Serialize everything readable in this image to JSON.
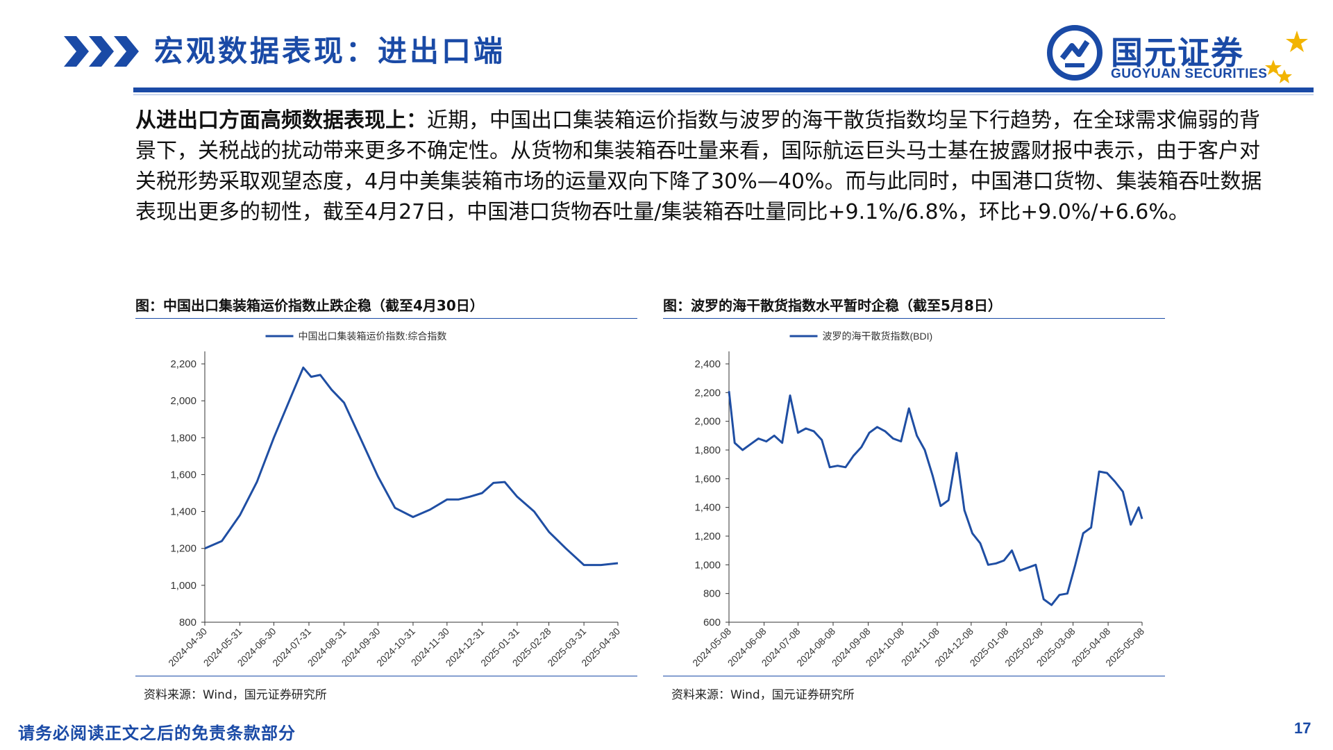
{
  "header": {
    "title": "宏观数据表现：进出口端",
    "logo_cn": "国元证券",
    "logo_en": "GUOYUAN SECURITIES",
    "icons": [
      "chevron-arrows-icon",
      "guoyuan-logo-icon",
      "stars-icon"
    ]
  },
  "colors": {
    "brand_blue": "#1a4aa6",
    "line_blue": "#1f4ea3",
    "gold": "#f2b400"
  },
  "body": {
    "lead": "从进出口方面高频数据表现上：",
    "text": "近期，中国出口集装箱运价指数与波罗的海干散货指数均呈下行趋势，在全球需求偏弱的背景下，关税战的扰动带来更多不确定性。从货物和集装箱吞吐量来看，国际航运巨头马士基在披露财报中表示，由于客户对关税形势采取观望态度，4月中美集装箱市场的运量双向下降了30%—40%。而与此同时，中国港口货物、集装箱吞吐数据表现出更多的韧性，截至4月27日，中国港口货物吞吐量/集装箱吞吐量同比+9.1%/6.8%，环比+9.0%/+6.6%。"
  },
  "panels": [
    {
      "title": "图：中国出口集装箱运价指数止跌企稳（截至4月30日）",
      "source": "资料来源：Wind，国元证券研究所"
    },
    {
      "title": "图：波罗的海干散货指数水平暂时企稳（截至5月8日）",
      "source": "资料来源：Wind，国元证券研究所"
    }
  ],
  "chart_data": [
    {
      "type": "line",
      "series": [
        {
          "name": "中国出口集装箱运价指数:综合指数",
          "x": [
            "2024-04-30",
            "2024-05-15",
            "2024-05-31",
            "2024-06-15",
            "2024-06-30",
            "2024-07-15",
            "2024-07-26",
            "2024-08-02",
            "2024-08-10",
            "2024-08-20",
            "2024-08-31",
            "2024-09-15",
            "2024-09-30",
            "2024-10-15",
            "2024-10-31",
            "2024-11-15",
            "2024-11-30",
            "2024-12-10",
            "2024-12-20",
            "2024-12-31",
            "2025-01-10",
            "2025-01-20",
            "2025-01-31",
            "2025-02-15",
            "2025-02-28",
            "2025-03-15",
            "2025-03-31",
            "2025-04-15",
            "2025-04-30"
          ],
          "values": [
            1200,
            1240,
            1380,
            1560,
            1800,
            2020,
            2180,
            2130,
            2140,
            2060,
            1990,
            1790,
            1590,
            1420,
            1370,
            1410,
            1465,
            1465,
            1480,
            1500,
            1555,
            1560,
            1480,
            1400,
            1290,
            1200,
            1110,
            1110,
            1120
          ]
        }
      ],
      "x_ticks": [
        "2024-04-30",
        "2024-05-31",
        "2024-06-30",
        "2024-07-31",
        "2024-08-31",
        "2024-09-30",
        "2024-10-31",
        "2024-11-30",
        "2024-12-31",
        "2025-01-31",
        "2025-02-28",
        "2025-03-31",
        "2025-04-30"
      ],
      "y_ticks": [
        "800",
        "1,000",
        "1,200",
        "1,400",
        "1,600",
        "1,800",
        "2,000",
        "2,200"
      ],
      "ylim": [
        800,
        2200
      ],
      "xlim": [
        "2024-04-30",
        "2025-04-30"
      ],
      "legend": "top-center",
      "grid": false
    },
    {
      "type": "line",
      "series": [
        {
          "name": "波罗的海干散货指数(BDI)",
          "x": [
            "2024-05-08",
            "2024-05-13",
            "2024-05-20",
            "2024-05-27",
            "2024-06-03",
            "2024-06-10",
            "2024-06-17",
            "2024-06-24",
            "2024-07-01",
            "2024-07-08",
            "2024-07-15",
            "2024-07-22",
            "2024-07-29",
            "2024-08-05",
            "2024-08-12",
            "2024-08-19",
            "2024-08-26",
            "2024-09-02",
            "2024-09-09",
            "2024-09-16",
            "2024-09-23",
            "2024-09-30",
            "2024-10-07",
            "2024-10-14",
            "2024-10-21",
            "2024-10-28",
            "2024-11-04",
            "2024-11-11",
            "2024-11-18",
            "2024-11-25",
            "2024-12-02",
            "2024-12-09",
            "2024-12-16",
            "2024-12-23",
            "2024-12-30",
            "2025-01-06",
            "2025-01-13",
            "2025-01-20",
            "2025-01-27",
            "2025-02-03",
            "2025-02-10",
            "2025-02-17",
            "2025-02-24",
            "2025-03-03",
            "2025-03-10",
            "2025-03-17",
            "2025-03-24",
            "2025-03-31",
            "2025-04-07",
            "2025-04-14",
            "2025-04-21",
            "2025-04-28",
            "2025-05-05",
            "2025-05-08"
          ],
          "values": [
            2210,
            1850,
            1800,
            1840,
            1880,
            1860,
            1900,
            1850,
            2180,
            1920,
            1950,
            1930,
            1870,
            1680,
            1690,
            1680,
            1760,
            1820,
            1920,
            1960,
            1930,
            1880,
            1860,
            2090,
            1900,
            1800,
            1620,
            1410,
            1450,
            1780,
            1380,
            1220,
            1150,
            1000,
            1010,
            1030,
            1100,
            960,
            980,
            1000,
            760,
            720,
            790,
            800,
            1000,
            1220,
            1260,
            1650,
            1640,
            1580,
            1510,
            1280,
            1400,
            1320
          ]
        }
      ],
      "x_ticks": [
        "2024-05-08",
        "2024-06-08",
        "2024-07-08",
        "2024-08-08",
        "2024-09-08",
        "2024-10-08",
        "2024-11-08",
        "2024-12-08",
        "2025-01-08",
        "2025-02-08",
        "2025-03-08",
        "2025-04-08",
        "2025-05-08"
      ],
      "y_ticks": [
        "600",
        "800",
        "1,000",
        "1,200",
        "1,400",
        "1,600",
        "1,800",
        "2,000",
        "2,200",
        "2,400"
      ],
      "ylim": [
        600,
        2400
      ],
      "xlim": [
        "2024-05-08",
        "2025-05-08"
      ],
      "legend": "top-center",
      "grid": false
    }
  ],
  "footer": {
    "disclaimer": "请务必阅读正文之后的免责条款部分",
    "page": "17"
  }
}
